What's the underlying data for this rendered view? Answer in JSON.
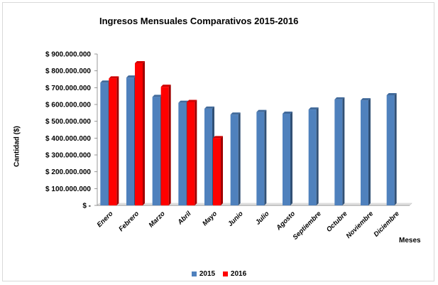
{
  "chart_data": {
    "type": "bar",
    "title": "Ingresos Mensuales Comparativos 2015-2016",
    "xlabel": "Meses",
    "ylabel": "Cantidad ($)",
    "ylim": [
      0,
      900000000
    ],
    "yticks": [
      {
        "value": 900000000,
        "label": "$ 900.000.000"
      },
      {
        "value": 800000000,
        "label": "$ 800.000.000"
      },
      {
        "value": 700000000,
        "label": "$ 700.000.000"
      },
      {
        "value": 600000000,
        "label": "$ 600.000.000"
      },
      {
        "value": 500000000,
        "label": "$ 500.000.000"
      },
      {
        "value": 400000000,
        "label": "$ 400.000.000"
      },
      {
        "value": 300000000,
        "label": "$ 300.000.000"
      },
      {
        "value": 200000000,
        "label": "$ 200.000.000"
      },
      {
        "value": 100000000,
        "label": "$ 100.000.000"
      },
      {
        "value": 0,
        "label": "$ -"
      }
    ],
    "categories": [
      "Enero",
      "Febrero",
      "Marzo",
      "Abril",
      "Mayo",
      "Junio",
      "Julio",
      "Agosto",
      "Septiembre",
      "Octubre",
      "Noviembre",
      "Diciembre"
    ],
    "series": [
      {
        "name": "2015",
        "color": "#4F81BD",
        "values": [
          730000000,
          760000000,
          645000000,
          610000000,
          575000000,
          540000000,
          555000000,
          545000000,
          570000000,
          630000000,
          625000000,
          655000000
        ]
      },
      {
        "name": "2016",
        "color": "#FF0000",
        "values": [
          755000000,
          845000000,
          705000000,
          615000000,
          400000000,
          null,
          null,
          null,
          null,
          null,
          null,
          null
        ]
      }
    ],
    "grid": false,
    "legend": "bottom"
  }
}
